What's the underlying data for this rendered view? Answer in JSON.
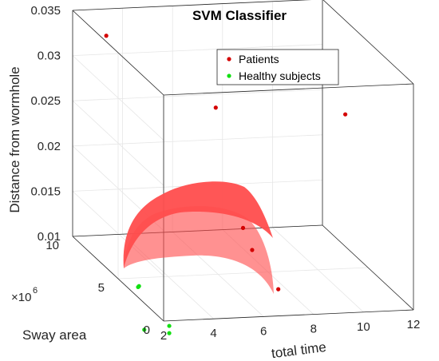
{
  "chart_data": {
    "type": "scatter",
    "title": "SVM Classifier",
    "xlabel": "total time",
    "ylabel": "Sway area",
    "zlabel": "Distance from wormhole",
    "y_exponent_label": "×10",
    "y_exponent_power": "6",
    "xlim": [
      2,
      12
    ],
    "ylim": [
      0,
      10
    ],
    "zlim": [
      0.01,
      0.035
    ],
    "x_ticks": [
      "2",
      "4",
      "6",
      "8",
      "10",
      "12"
    ],
    "y_ticks": [
      "0",
      "5",
      "10"
    ],
    "z_ticks": [
      "0.01",
      "0.015",
      "0.02",
      "0.025",
      "0.03",
      "0.035"
    ],
    "grid": true,
    "legend_position": "top-right",
    "colors": {
      "patients": "#d40000",
      "healthy": "#12e012",
      "surface": "#ff4d4d"
    },
    "series": [
      {
        "name": "Patients",
        "points": [
          {
            "x": 2.8,
            "y": 8.5,
            "z": 0.0335
          },
          {
            "x": 7.0,
            "y": 8.0,
            "z": 0.0255
          },
          {
            "x": 10.0,
            "y": 2.0,
            "z": 0.03
          },
          {
            "x": 7.0,
            "y": 5.0,
            "z": 0.015
          },
          {
            "x": 7.0,
            "y": 4.0,
            "z": 0.0135
          },
          {
            "x": 7.5,
            "y": 2.5,
            "z": 0.0105
          }
        ]
      },
      {
        "name": "Healthy subjects",
        "points": [
          {
            "x": 3.2,
            "y": 6.0,
            "z": 0.0081
          },
          {
            "x": 3.2,
            "y": 6.1,
            "z": 0.0079
          },
          {
            "x": 2.5,
            "y": 3.5,
            "z": 0.0057
          },
          {
            "x": 3.5,
            "y": 3.5,
            "z": 0.006
          },
          {
            "x": 3.5,
            "y": 3.5,
            "z": 0.0052
          },
          {
            "x": 3.5,
            "y": 1.5,
            "z": 0.0028
          }
        ]
      }
    ],
    "decision_surface": {
      "description_color": "#ff4d4d"
    }
  }
}
